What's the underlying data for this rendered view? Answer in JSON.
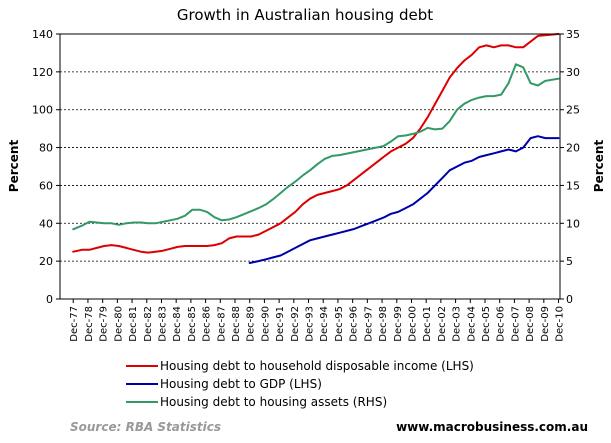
{
  "chart_data": {
    "type": "line",
    "title": "Growth in Australian housing debt",
    "ylabel_left": "Percent",
    "ylabel_right": "Percent",
    "ylim_left": [
      0,
      140
    ],
    "ylim_right": [
      0,
      35
    ],
    "yticks_left": [
      0,
      20,
      40,
      60,
      80,
      100,
      120,
      140
    ],
    "yticks_right": [
      0,
      5,
      10,
      15,
      20,
      25,
      30,
      35
    ],
    "grid": "horizontal-dashed",
    "legend_placement": "bottom",
    "x_start_year": 1977,
    "x_end_year": 2010,
    "categories": [
      "Dec-77",
      "Dec-78",
      "Dec-79",
      "Dec-80",
      "Dec-81",
      "Dec-82",
      "Dec-83",
      "Dec-84",
      "Dec-85",
      "Dec-86",
      "Dec-87",
      "Dec-88",
      "Dec-89",
      "Dec-90",
      "Dec-91",
      "Dec-92",
      "Dec-93",
      "Dec-94",
      "Dec-95",
      "Dec-96",
      "Dec-97",
      "Dec-98",
      "Dec-99",
      "Dec-00",
      "Dec-01",
      "Dec-02",
      "Dec-03",
      "Dec-04",
      "Dec-05",
      "Dec-06",
      "Dec-07",
      "Dec-08",
      "Dec-09",
      "Dec-10"
    ],
    "series": [
      {
        "name": "Housing debt to household disposable income (LHS)",
        "axis": "left",
        "color": "#dd0000",
        "points": [
          [
            1977.9,
            25
          ],
          [
            1978.5,
            26
          ],
          [
            1979.0,
            26
          ],
          [
            1979.5,
            27
          ],
          [
            1980.0,
            28
          ],
          [
            1980.5,
            28.5
          ],
          [
            1981.0,
            28
          ],
          [
            1981.5,
            27
          ],
          [
            1982.0,
            26
          ],
          [
            1982.5,
            25
          ],
          [
            1983.0,
            24.5
          ],
          [
            1983.5,
            25
          ],
          [
            1984.0,
            25.5
          ],
          [
            1984.5,
            26.5
          ],
          [
            1985.0,
            27.5
          ],
          [
            1985.5,
            28
          ],
          [
            1986.0,
            28
          ],
          [
            1986.5,
            28
          ],
          [
            1987.0,
            28
          ],
          [
            1987.5,
            28.5
          ],
          [
            1988.0,
            29.5
          ],
          [
            1988.5,
            32
          ],
          [
            1989.0,
            33
          ],
          [
            1989.5,
            33
          ],
          [
            1990.0,
            33
          ],
          [
            1990.5,
            34
          ],
          [
            1991.0,
            36
          ],
          [
            1991.5,
            38
          ],
          [
            1992.0,
            40
          ],
          [
            1992.5,
            43
          ],
          [
            1993.0,
            46
          ],
          [
            1993.5,
            50
          ],
          [
            1994.0,
            53
          ],
          [
            1994.5,
            55
          ],
          [
            1995.0,
            56
          ],
          [
            1995.5,
            57
          ],
          [
            1996.0,
            58
          ],
          [
            1996.5,
            60
          ],
          [
            1997.0,
            63
          ],
          [
            1997.5,
            66
          ],
          [
            1998.0,
            69
          ],
          [
            1998.5,
            72
          ],
          [
            1999.0,
            75
          ],
          [
            1999.5,
            78
          ],
          [
            2000.0,
            80
          ],
          [
            2000.5,
            82
          ],
          [
            2001.0,
            85
          ],
          [
            2001.5,
            90
          ],
          [
            2002.0,
            96
          ],
          [
            2002.5,
            103
          ],
          [
            2003.0,
            110
          ],
          [
            2003.5,
            117
          ],
          [
            2004.0,
            122
          ],
          [
            2004.5,
            126
          ],
          [
            2005.0,
            129
          ],
          [
            2005.5,
            133
          ],
          [
            2006.0,
            134
          ],
          [
            2006.5,
            133
          ],
          [
            2007.0,
            134
          ],
          [
            2007.5,
            134
          ],
          [
            2008.0,
            133
          ],
          [
            2008.5,
            133
          ],
          [
            2009.0,
            136
          ],
          [
            2009.5,
            139
          ],
          [
            2010.9,
            140
          ]
        ]
      },
      {
        "name": "Housing debt to GDP (LHS)",
        "axis": "left",
        "color": "#0000aa",
        "points": [
          [
            1989.9,
            19
          ],
          [
            1990.5,
            20
          ],
          [
            1991.0,
            21
          ],
          [
            1991.5,
            22
          ],
          [
            1992.0,
            23
          ],
          [
            1992.5,
            25
          ],
          [
            1993.0,
            27
          ],
          [
            1993.5,
            29
          ],
          [
            1994.0,
            31
          ],
          [
            1994.5,
            32
          ],
          [
            1995.0,
            33
          ],
          [
            1995.5,
            34
          ],
          [
            1996.0,
            35
          ],
          [
            1996.5,
            36
          ],
          [
            1997.0,
            37
          ],
          [
            1997.5,
            38.5
          ],
          [
            1998.0,
            40
          ],
          [
            1998.5,
            41.5
          ],
          [
            1999.0,
            43
          ],
          [
            1999.5,
            45
          ],
          [
            2000.0,
            46
          ],
          [
            2000.5,
            48
          ],
          [
            2001.0,
            50
          ],
          [
            2001.5,
            53
          ],
          [
            2002.0,
            56
          ],
          [
            2002.5,
            60
          ],
          [
            2003.0,
            64
          ],
          [
            2003.5,
            68
          ],
          [
            2004.0,
            70
          ],
          [
            2004.5,
            72
          ],
          [
            2005.0,
            73
          ],
          [
            2005.5,
            75
          ],
          [
            2006.0,
            76
          ],
          [
            2006.5,
            77
          ],
          [
            2007.0,
            78
          ],
          [
            2007.5,
            79
          ],
          [
            2008.0,
            78
          ],
          [
            2008.5,
            80
          ],
          [
            2009.0,
            85
          ],
          [
            2009.5,
            86
          ],
          [
            2010.0,
            85
          ],
          [
            2010.9,
            85
          ]
        ]
      },
      {
        "name": "Housing debt to housing assets (RHS)",
        "axis": "right",
        "color": "#339966",
        "points": [
          [
            1977.9,
            9.2
          ],
          [
            1978.5,
            9.7
          ],
          [
            1979.0,
            10.2
          ],
          [
            1979.5,
            10.1
          ],
          [
            1980.0,
            10
          ],
          [
            1980.5,
            10
          ],
          [
            1981.0,
            9.8
          ],
          [
            1981.5,
            10
          ],
          [
            1982.0,
            10.1
          ],
          [
            1982.5,
            10.1
          ],
          [
            1983.0,
            10
          ],
          [
            1983.5,
            10
          ],
          [
            1984.0,
            10.2
          ],
          [
            1984.5,
            10.4
          ],
          [
            1985.0,
            10.6
          ],
          [
            1985.5,
            11
          ],
          [
            1986.0,
            11.8
          ],
          [
            1986.5,
            11.8
          ],
          [
            1987.0,
            11.5
          ],
          [
            1987.5,
            10.8
          ],
          [
            1988.0,
            10.4
          ],
          [
            1988.5,
            10.5
          ],
          [
            1989.0,
            10.8
          ],
          [
            1989.5,
            11.2
          ],
          [
            1990.0,
            11.6
          ],
          [
            1990.5,
            12
          ],
          [
            1991.0,
            12.5
          ],
          [
            1991.5,
            13.2
          ],
          [
            1992.0,
            14
          ],
          [
            1992.5,
            14.8
          ],
          [
            1993.0,
            15.5
          ],
          [
            1993.5,
            16.3
          ],
          [
            1994.0,
            17
          ],
          [
            1994.5,
            17.8
          ],
          [
            1995.0,
            18.5
          ],
          [
            1995.5,
            18.9
          ],
          [
            1996.0,
            19
          ],
          [
            1996.5,
            19.2
          ],
          [
            1997.0,
            19.4
          ],
          [
            1997.5,
            19.6
          ],
          [
            1998.0,
            19.8
          ],
          [
            1998.5,
            20
          ],
          [
            1999.0,
            20.2
          ],
          [
            1999.5,
            20.8
          ],
          [
            2000.0,
            21.5
          ],
          [
            2000.5,
            21.6
          ],
          [
            2001.0,
            21.8
          ],
          [
            2001.5,
            22.1
          ],
          [
            2002.0,
            22.6
          ],
          [
            2002.5,
            22.4
          ],
          [
            2003.0,
            22.5
          ],
          [
            2003.5,
            23.5
          ],
          [
            2004.0,
            25
          ],
          [
            2004.5,
            25.8
          ],
          [
            2005.0,
            26.3
          ],
          [
            2005.5,
            26.6
          ],
          [
            2006.0,
            26.8
          ],
          [
            2006.5,
            26.8
          ],
          [
            2007.0,
            27
          ],
          [
            2007.5,
            28.5
          ],
          [
            2008.0,
            31
          ],
          [
            2008.5,
            30.6
          ],
          [
            2009.0,
            28.5
          ],
          [
            2009.5,
            28.2
          ],
          [
            2010.0,
            28.8
          ],
          [
            2010.9,
            29.1
          ]
        ]
      }
    ]
  },
  "footer": {
    "source": "Source: RBA Statistics",
    "website": "www.macrobusiness.com.au"
  }
}
